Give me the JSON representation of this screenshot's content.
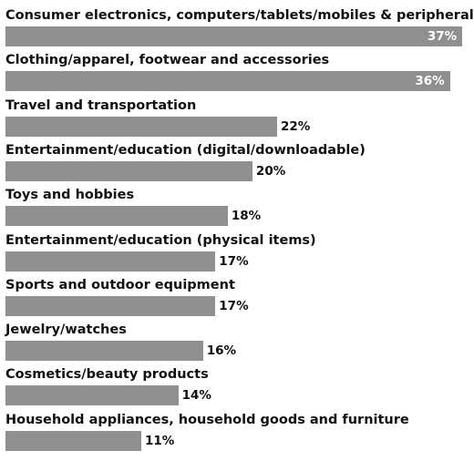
{
  "chart_data": {
    "type": "bar",
    "orientation": "horizontal",
    "unit": "%",
    "categories": [
      "Consumer electronics, computers/tablets/mobiles & peripherals",
      "Clothing/apparel, footwear and accessories",
      "Travel and transportation",
      "Entertainment/education (digital/downloadable)",
      "Toys and hobbies",
      "Entertainment/education (physical items)",
      "Sports and outdoor equipment",
      "Jewelry/watches",
      "Cosmetics/beauty products",
      "Household appliances, household goods and furniture"
    ],
    "values": [
      37,
      36,
      22,
      20,
      18,
      17,
      17,
      16,
      14,
      11
    ],
    "value_labels": [
      "37%",
      "36%",
      "22%",
      "20%",
      "18%",
      "17%",
      "17%",
      "16%",
      "14%",
      "11%"
    ],
    "xlim": [
      0,
      37.5
    ],
    "grid": false,
    "colors": {
      "bar": "#8f8f8f",
      "label": "#111111",
      "inside_value": "#ffffff"
    }
  }
}
